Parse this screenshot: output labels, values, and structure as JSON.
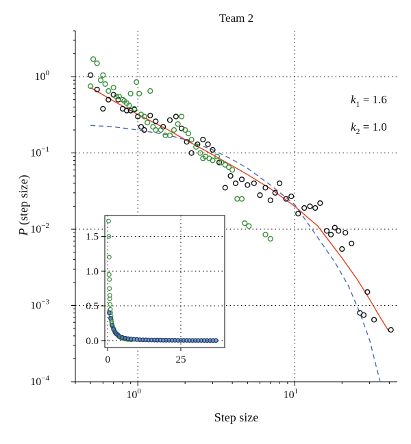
{
  "chart_data": {
    "type": "scatter",
    "title": "Team 2",
    "xlabel": "Step size",
    "ylabel_italic": "P",
    "ylabel_rest": " (step size)",
    "x_scale": "log",
    "y_scale": "log",
    "xlim": [
      0.4,
      45
    ],
    "ylim": [
      0.0001,
      4
    ],
    "x_ticks": [
      {
        "value": 1,
        "base": "10",
        "exp": "0"
      },
      {
        "value": 10,
        "base": "10",
        "exp": "1"
      }
    ],
    "y_ticks": [
      {
        "value": 1,
        "base": "10",
        "exp": "0"
      },
      {
        "value": 0.1,
        "base": "10",
        "exp": "−1"
      },
      {
        "value": 0.01,
        "base": "10",
        "exp": "−2"
      },
      {
        "value": 0.001,
        "base": "10",
        "exp": "−3"
      },
      {
        "value": 0.0001,
        "base": "10",
        "exp": "−4"
      }
    ],
    "grid": true,
    "annotations": [
      {
        "k": "k",
        "sub": "1",
        "rest": " = 1.6",
        "color": "#a05bb8"
      },
      {
        "k": "k",
        "sub": "2",
        "rest": " = 1.0",
        "color": "#ee3a1c"
      }
    ],
    "series": [
      {
        "kind": "scatter",
        "color": "#111111",
        "points": [
          [
            0.5,
            1.05
          ],
          [
            0.55,
            0.68
          ],
          [
            0.6,
            0.38
          ],
          [
            0.65,
            0.5
          ],
          [
            0.7,
            0.58
          ],
          [
            0.75,
            0.5
          ],
          [
            0.8,
            0.38
          ],
          [
            0.85,
            0.36
          ],
          [
            0.9,
            0.36
          ],
          [
            0.95,
            0.37
          ],
          [
            1.0,
            0.3
          ],
          [
            1.05,
            0.22
          ],
          [
            1.1,
            0.2
          ],
          [
            1.2,
            0.31
          ],
          [
            1.3,
            0.26
          ],
          [
            1.45,
            0.22
          ],
          [
            1.6,
            0.27
          ],
          [
            1.75,
            0.3
          ],
          [
            1.9,
            0.21
          ],
          [
            2.05,
            0.14
          ],
          [
            2.2,
            0.1
          ],
          [
            2.4,
            0.13
          ],
          [
            2.6,
            0.15
          ],
          [
            2.8,
            0.13
          ],
          [
            3.0,
            0.11
          ],
          [
            3.3,
            0.075
          ],
          [
            3.6,
            0.035
          ],
          [
            3.9,
            0.05
          ],
          [
            4.2,
            0.04
          ],
          [
            4.6,
            0.045
          ],
          [
            5.0,
            0.038
          ],
          [
            5.5,
            0.04
          ],
          [
            6.0,
            0.028
          ],
          [
            6.5,
            0.035
          ],
          [
            7.0,
            0.024
          ],
          [
            7.5,
            0.03
          ],
          [
            8.0,
            0.04
          ],
          [
            8.8,
            0.025
          ],
          [
            9.5,
            0.027
          ],
          [
            10.5,
            0.016
          ],
          [
            11.5,
            0.019
          ],
          [
            12.5,
            0.02
          ],
          [
            13.5,
            0.019
          ],
          [
            14.5,
            0.022
          ],
          [
            16,
            0.0095
          ],
          [
            17,
            0.0085
          ],
          [
            18,
            0.0105
          ],
          [
            19,
            0.0095
          ],
          [
            20,
            0.0055
          ],
          [
            21,
            0.009
          ],
          [
            23,
            0.0065
          ],
          [
            26,
            0.0008
          ],
          [
            27.5,
            0.00075
          ],
          [
            29,
            0.0015
          ],
          [
            32,
            0.00065
          ],
          [
            41,
            0.00048
          ]
        ]
      },
      {
        "kind": "scatter",
        "color": "#3a8f3a",
        "points": [
          [
            0.5,
            0.75
          ],
          [
            0.52,
            1.7
          ],
          [
            0.55,
            1.5
          ],
          [
            0.58,
            0.9
          ],
          [
            0.6,
            1.05
          ],
          [
            0.62,
            0.8
          ],
          [
            0.65,
            0.65
          ],
          [
            0.7,
            0.72
          ],
          [
            0.73,
            0.55
          ],
          [
            0.76,
            0.55
          ],
          [
            0.8,
            0.5
          ],
          [
            0.82,
            0.48
          ],
          [
            0.85,
            0.45
          ],
          [
            0.88,
            0.42
          ],
          [
            0.9,
            0.6
          ],
          [
            0.95,
            0.38
          ],
          [
            0.98,
            0.85
          ],
          [
            1.02,
            0.6
          ],
          [
            1.05,
            0.32
          ],
          [
            1.1,
            0.3
          ],
          [
            1.15,
            0.25
          ],
          [
            1.2,
            0.65
          ],
          [
            1.25,
            0.22
          ],
          [
            1.3,
            0.2
          ],
          [
            1.4,
            0.2
          ],
          [
            1.5,
            0.17
          ],
          [
            1.6,
            0.17
          ],
          [
            1.7,
            0.2
          ],
          [
            1.8,
            0.24
          ],
          [
            1.9,
            0.3
          ],
          [
            2.0,
            0.2
          ],
          [
            2.1,
            0.18
          ],
          [
            2.2,
            0.15
          ],
          [
            2.35,
            0.12
          ],
          [
            2.5,
            0.1
          ],
          [
            2.6,
            0.085
          ],
          [
            2.7,
            0.09
          ],
          [
            2.85,
            0.085
          ],
          [
            3.0,
            0.08
          ],
          [
            3.2,
            0.09
          ],
          [
            3.4,
            0.075
          ],
          [
            3.6,
            0.07
          ],
          [
            3.8,
            0.065
          ],
          [
            4.0,
            0.06
          ],
          [
            4.3,
            0.025
          ],
          [
            4.6,
            0.025
          ],
          [
            4.8,
            0.012
          ],
          [
            5.1,
            0.011
          ],
          [
            6.5,
            0.0085
          ],
          [
            7.0,
            0.0075
          ]
        ]
      },
      {
        "kind": "line",
        "color": "#ee3a1c",
        "points": [
          [
            0.5,
            0.72
          ],
          [
            0.7,
            0.48
          ],
          [
            1,
            0.32
          ],
          [
            1.5,
            0.21
          ],
          [
            2,
            0.15
          ],
          [
            3,
            0.095
          ],
          [
            4,
            0.068
          ],
          [
            5,
            0.052
          ],
          [
            7,
            0.034
          ],
          [
            10,
            0.02
          ],
          [
            14,
            0.011
          ],
          [
            20,
            0.0042
          ],
          [
            25,
            0.0022
          ],
          [
            30,
            0.0012
          ],
          [
            35,
            0.0007
          ],
          [
            40,
            0.00045
          ]
        ]
      },
      {
        "kind": "line",
        "dashed": true,
        "color": "#4a6ab0",
        "points": [
          [
            0.5,
            0.23
          ],
          [
            0.7,
            0.22
          ],
          [
            1,
            0.2
          ],
          [
            1.5,
            0.175
          ],
          [
            2,
            0.15
          ],
          [
            3,
            0.11
          ],
          [
            4,
            0.082
          ],
          [
            5,
            0.063
          ],
          [
            7,
            0.038
          ],
          [
            10,
            0.021
          ],
          [
            14,
            0.0078
          ],
          [
            18,
            0.0037
          ],
          [
            22,
            0.0018
          ],
          [
            26,
            0.0008
          ],
          [
            30,
            0.00035
          ],
          [
            33,
            0.00016
          ],
          [
            35,
            0.0001
          ]
        ]
      }
    ],
    "inset": {
      "type": "scatter",
      "xlim": [
        -1,
        40
      ],
      "ylim": [
        -0.1,
        1.8
      ],
      "x_ticks": [
        0,
        25
      ],
      "y_ticks": [
        0.0,
        0.5,
        1.0,
        1.5
      ],
      "x_tick_labels": [
        "0",
        "25"
      ],
      "y_tick_labels": [
        "0.0",
        "0.5",
        "1.0",
        "1.5"
      ],
      "grid": true,
      "series": [
        {
          "color": "#3a8f3a",
          "points": [
            [
              0.3,
              1.72
            ],
            [
              0.4,
              1.5
            ],
            [
              0.5,
              1.2
            ],
            [
              0.5,
              0.95
            ],
            [
              0.6,
              0.88
            ],
            [
              0.6,
              0.75
            ],
            [
              0.7,
              0.65
            ],
            [
              0.7,
              0.6
            ],
            [
              0.8,
              0.52
            ],
            [
              0.9,
              0.45
            ],
            [
              1,
              0.4
            ],
            [
              1.1,
              0.35
            ],
            [
              1.2,
              0.3
            ],
            [
              1.3,
              0.27
            ],
            [
              1.4,
              0.24
            ],
            [
              1.5,
              0.22
            ],
            [
              1.7,
              0.2
            ],
            [
              1.9,
              0.18
            ],
            [
              2.1,
              0.16
            ],
            [
              2.3,
              0.14
            ],
            [
              2.5,
              0.12
            ],
            [
              2.8,
              0.1
            ],
            [
              3.1,
              0.09
            ],
            [
              3.4,
              0.08
            ],
            [
              3.8,
              0.06
            ],
            [
              4.2,
              0.05
            ],
            [
              4.6,
              0.04
            ],
            [
              5.0,
              0.035
            ],
            [
              5.5,
              0.03
            ],
            [
              6,
              0.025
            ],
            [
              6.5,
              0.02
            ],
            [
              7,
              0.015
            ],
            [
              8,
              0.01
            ]
          ]
        },
        {
          "color": "#1e3c6e",
          "points": [
            [
              0.5,
              0.4
            ],
            [
              1,
              0.32
            ],
            [
              1.5,
              0.22
            ],
            [
              2,
              0.16
            ],
            [
              2.5,
              0.12
            ],
            [
              3,
              0.1
            ],
            [
              3.5,
              0.08
            ],
            [
              4,
              0.06
            ],
            [
              5,
              0.045
            ],
            [
              6,
              0.035
            ],
            [
              7,
              0.028
            ],
            [
              8,
              0.022
            ],
            [
              9,
              0.018
            ],
            [
              10,
              0.015
            ],
            [
              11,
              0.012
            ],
            [
              12,
              0.01
            ],
            [
              13,
              0.01
            ],
            [
              14,
              0.008
            ],
            [
              15,
              0.008
            ],
            [
              16,
              0.007
            ],
            [
              17,
              0.006
            ],
            [
              18,
              0.006
            ],
            [
              19,
              0.005
            ],
            [
              20,
              0.005
            ],
            [
              21,
              0.004
            ],
            [
              22,
              0.004
            ],
            [
              23,
              0.004
            ],
            [
              24,
              0.003
            ],
            [
              25,
              0.003
            ],
            [
              26,
              0.003
            ],
            [
              27,
              0.003
            ],
            [
              28,
              0.002
            ],
            [
              29,
              0.002
            ],
            [
              30,
              0.002
            ],
            [
              31,
              0.002
            ],
            [
              32,
              0.002
            ],
            [
              33,
              0.002
            ],
            [
              34,
              0.001
            ],
            [
              35,
              0.001
            ],
            [
              36,
              0.001
            ],
            [
              37,
              0.001
            ]
          ]
        }
      ]
    }
  }
}
